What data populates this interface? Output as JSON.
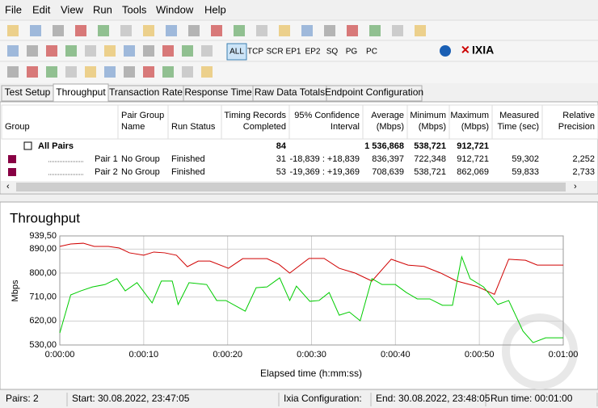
{
  "menu": [
    "File",
    "Edit",
    "View",
    "Run",
    "Tools",
    "Window",
    "Help"
  ],
  "toolbar": {
    "protocols": [
      "ALL",
      "TCP",
      "SCR",
      "EP1",
      "EP2",
      "SQ",
      "PG",
      "PC"
    ],
    "brand": "IXIA"
  },
  "tabs": [
    "Test Setup",
    "Throughput",
    "Transaction Rate",
    "Response Time",
    "Raw Data Totals",
    "Endpoint Configuration"
  ],
  "table": {
    "columns": [
      {
        "key": "group",
        "label": [
          "Group"
        ]
      },
      {
        "key": "pgname",
        "label": [
          "Pair Group",
          "Name"
        ]
      },
      {
        "key": "status",
        "label": [
          "Run Status"
        ]
      },
      {
        "key": "completed",
        "label": [
          "Timing Records",
          "Completed"
        ]
      },
      {
        "key": "ci",
        "label": [
          "95% Confidence",
          "Interval"
        ]
      },
      {
        "key": "avg",
        "label": [
          "Average",
          "(Mbps)"
        ]
      },
      {
        "key": "min",
        "label": [
          "Minimum",
          "(Mbps)"
        ]
      },
      {
        "key": "max",
        "label": [
          "Maximum",
          "(Mbps)"
        ]
      },
      {
        "key": "time",
        "label": [
          "Measured",
          "Time (sec)"
        ]
      },
      {
        "key": "prec",
        "label": [
          "Relative",
          "Precision"
        ]
      }
    ],
    "rows": [
      {
        "group": "All Pairs",
        "completed": "84",
        "avg": "1 536,868",
        "min": "538,721",
        "max": "912,721"
      },
      {
        "group": "Pair 1",
        "pgname": "No Group",
        "status": "Finished",
        "completed": "31",
        "ci": "-18,839 : +18,839",
        "avg": "836,397",
        "min": "722,348",
        "max": "912,721",
        "time": "59,302",
        "prec": "2,252"
      },
      {
        "group": "Pair 2",
        "pgname": "No Group",
        "status": "Finished",
        "completed": "53",
        "ci": "-19,369 : +19,369",
        "avg": "708,639",
        "min": "538,721",
        "max": "862,069",
        "time": "59,833",
        "prec": "2,733"
      }
    ]
  },
  "chart_data": {
    "type": "line",
    "title": "Throughput",
    "y_label": "Mbps",
    "x_label": "Elapsed time (h:mm:ss)",
    "xlim": [
      0,
      60
    ],
    "xticks": [
      {
        "value": 0,
        "label": "0:00:00"
      },
      {
        "value": 10,
        "label": "0:00:10"
      },
      {
        "value": 20,
        "label": "0:00:20"
      },
      {
        "value": 30,
        "label": "0:00:30"
      },
      {
        "value": 40,
        "label": "0:00:40"
      },
      {
        "value": 50,
        "label": "0:00:50"
      },
      {
        "value": 60,
        "label": "0:01:00"
      }
    ],
    "ylim": [
      530,
      939.5
    ],
    "yticks": [
      {
        "value": 530,
        "label": "530,00"
      },
      {
        "value": 620,
        "label": "620,00"
      },
      {
        "value": 710,
        "label": "710,00"
      },
      {
        "value": 800,
        "label": "800,00"
      },
      {
        "value": 890,
        "label": "890,00"
      },
      {
        "value": 939.5,
        "label": "939,50"
      }
    ],
    "grid": true,
    "series": [
      {
        "color": "#d00000",
        "x": [
          0,
          1.3,
          2.8,
          4.1,
          5.8,
          7.1,
          8.3,
          10,
          11.2,
          12.5,
          13.9,
          15.2,
          16.5,
          17.9,
          20.1,
          21.8,
          24.7,
          26.1,
          27.4,
          29.7,
          31.5,
          33.3,
          35.2,
          37.2,
          39.5,
          41.5,
          43.4,
          45.4,
          47.3,
          49.7,
          51.8,
          53.5,
          55.5,
          56.9,
          60
        ],
        "values": [
          900,
          909,
          912,
          900,
          900,
          894,
          876,
          867,
          879,
          876,
          867,
          824,
          845,
          845,
          818,
          854,
          854,
          833,
          800,
          855,
          855,
          818,
          800,
          770,
          852,
          830,
          825,
          800,
          770,
          750,
          720,
          852,
          848,
          830,
          830
        ]
      },
      {
        "color": "#00cc00",
        "x": [
          0,
          1.3,
          2.5,
          3.9,
          5.4,
          6.8,
          7.8,
          9.2,
          11,
          12.1,
          13.4,
          14.1,
          15.4,
          17.5,
          18.7,
          19.8,
          22.1,
          23.4,
          24.7,
          26.2,
          27.4,
          28.2,
          29.8,
          30.9,
          32.1,
          33.3,
          34.5,
          35.8,
          37.2,
          38.4,
          40,
          41.3,
          42.6,
          44.1,
          45.6,
          46.8,
          47.9,
          48.9,
          50.5,
          52.2,
          53.5,
          55.2,
          56.4,
          57.9,
          60
        ],
        "values": [
          575,
          718,
          733,
          748,
          757,
          779,
          733,
          764,
          688,
          770,
          770,
          682,
          764,
          757,
          697,
          697,
          657,
          745,
          748,
          782,
          697,
          751,
          694,
          697,
          727,
          642,
          654,
          621,
          779,
          757,
          757,
          727,
          703,
          703,
          679,
          679,
          861,
          779,
          748,
          682,
          697,
          582,
          539,
          557,
          557
        ]
      }
    ]
  },
  "status": [
    "Pairs: 2",
    "Start: 30.08.2022, 23:47:05",
    "Ixia Configuration:",
    "End: 30.08.2022, 23:48:05",
    "Run time: 00:01:00"
  ]
}
